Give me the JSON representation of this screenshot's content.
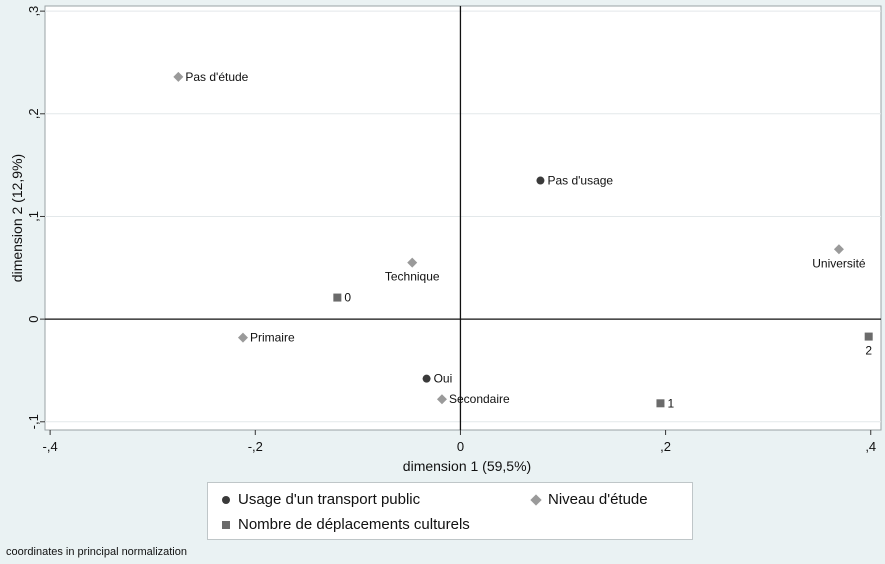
{
  "chart_data": {
    "type": "scatter",
    "xlabel": "dimension 1 (59,5%)",
    "ylabel": "dimension 2 (12,9%)",
    "xlim": [
      -0.405,
      0.41
    ],
    "ylim": [
      -0.108,
      0.305
    ],
    "x_ticks": [
      {
        "value": -0.4,
        "label": "-,4"
      },
      {
        "value": -0.2,
        "label": "-,2"
      },
      {
        "value": 0,
        "label": "0"
      },
      {
        "value": 0.2,
        "label": ",2"
      },
      {
        "value": 0.4,
        "label": ",4"
      }
    ],
    "y_ticks": [
      {
        "value": -0.1,
        "label": "-,1"
      },
      {
        "value": 0,
        "label": "0"
      },
      {
        "value": 0.1,
        "label": ",1"
      },
      {
        "value": 0.2,
        "label": ",2"
      },
      {
        "value": 0.3,
        "label": ",3"
      }
    ],
    "grid": true,
    "reference_lines": {
      "x": 0,
      "y": 0
    },
    "legend_position": "bottom",
    "series": [
      {
        "name": "Usage d'un transport public",
        "marker": "circle",
        "color": "#3a3a3a",
        "points": [
          {
            "label": "Pas d'usage",
            "x": 0.078,
            "y": 0.135,
            "label_pos": "right"
          },
          {
            "label": "Oui",
            "x": -0.033,
            "y": -0.058,
            "label_pos": "right"
          }
        ]
      },
      {
        "name": "Niveau d'étude",
        "marker": "diamond",
        "color": "#9a9a9a",
        "points": [
          {
            "label": "Pas d'étude",
            "x": -0.275,
            "y": 0.236,
            "label_pos": "right"
          },
          {
            "label": "Technique",
            "x": -0.047,
            "y": 0.055,
            "label_pos": "below"
          },
          {
            "label": "Université",
            "x": 0.369,
            "y": 0.068,
            "label_pos": "below"
          },
          {
            "label": "Primaire",
            "x": -0.212,
            "y": -0.018,
            "label_pos": "right"
          },
          {
            "label": "Secondaire",
            "x": -0.018,
            "y": -0.078,
            "label_pos": "right"
          }
        ]
      },
      {
        "name": "Nombre de déplacements culturels",
        "marker": "square",
        "color": "#6b6b6b",
        "points": [
          {
            "label": "0",
            "x": -0.12,
            "y": 0.021,
            "label_pos": "right"
          },
          {
            "label": "1",
            "x": 0.195,
            "y": -0.082,
            "label_pos": "right"
          },
          {
            "label": "2",
            "x": 0.398,
            "y": -0.017,
            "label_pos": "below"
          }
        ]
      }
    ]
  },
  "legend": {
    "items": [
      {
        "label": "Usage d'un transport public",
        "marker": "circle"
      },
      {
        "label": "Niveau d'étude",
        "marker": "diamond"
      },
      {
        "label": "Nombre de déplacements culturels",
        "marker": "square"
      }
    ]
  },
  "footnote": "coordinates in principal normalization"
}
